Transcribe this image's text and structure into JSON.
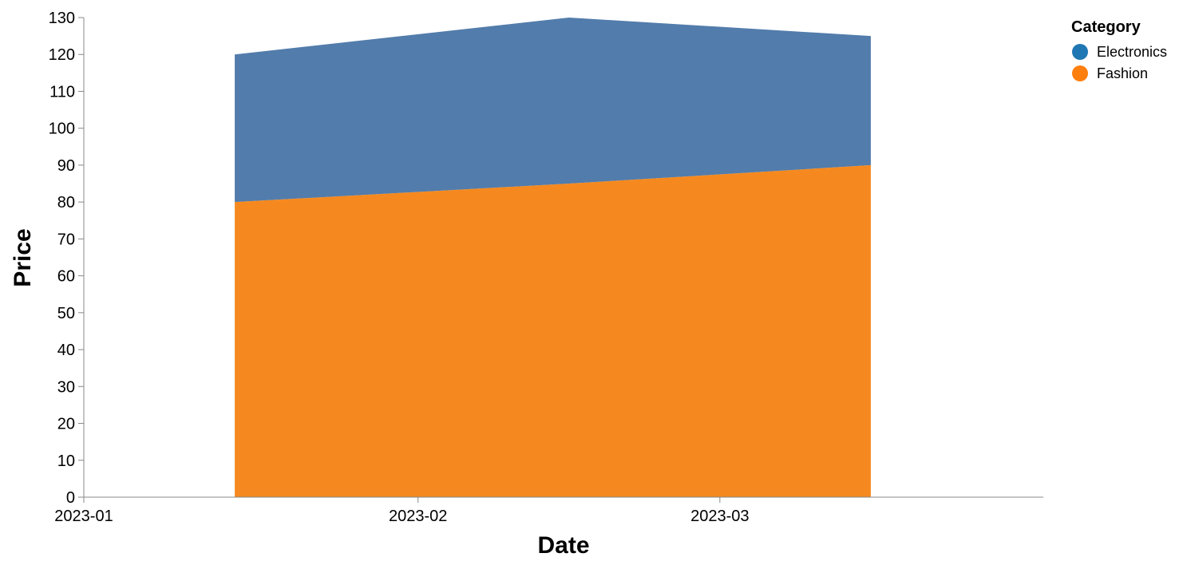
{
  "chart_data": {
    "type": "area",
    "stacked": true,
    "xlabel": "Date",
    "ylabel": "Price",
    "x_ticks": [
      "2023-01",
      "2023-02",
      "2023-03"
    ],
    "x": [
      "2023-01-15",
      "2023-02-15",
      "2023-03-15"
    ],
    "x_domain": [
      "2023-01-01",
      "2023-03-31"
    ],
    "ylim": [
      0,
      130
    ],
    "y_ticks": [
      0,
      10,
      20,
      30,
      40,
      50,
      60,
      70,
      80,
      90,
      100,
      110,
      120,
      130
    ],
    "grid": false,
    "legend": {
      "title": "Category",
      "placement": "top-right"
    },
    "series": [
      {
        "name": "Fashion",
        "color": "#f58518",
        "values": [
          80,
          85,
          90
        ]
      },
      {
        "name": "Electronics",
        "color": "#4c78a8",
        "values": [
          40,
          45,
          35
        ]
      }
    ]
  }
}
